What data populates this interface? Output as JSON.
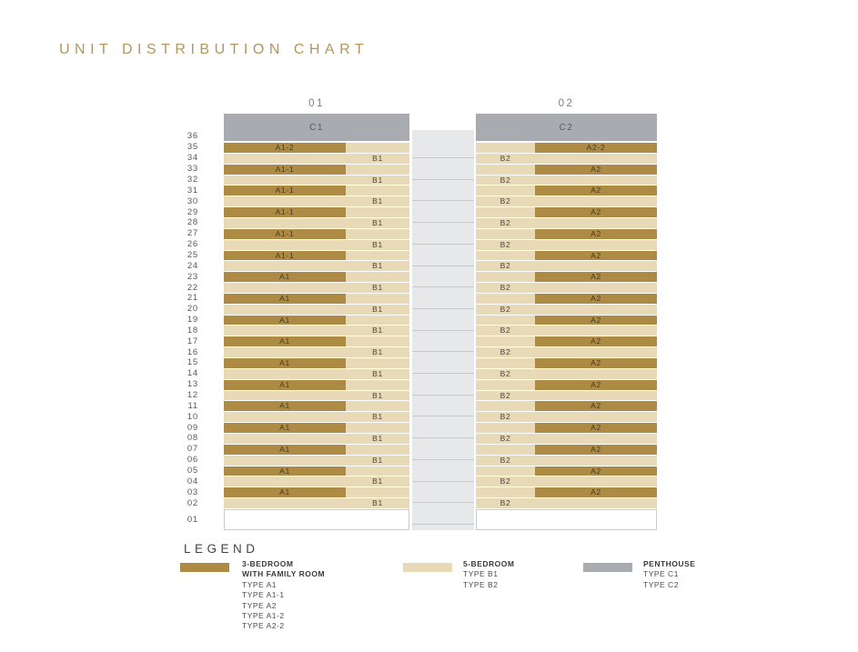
{
  "colors": {
    "gold": "#ae8b45",
    "cream": "#e9dab7",
    "penthouse_gray": "#a8abaf",
    "core_fill": "#e6e8ea",
    "core_divider": "#c7c9cc",
    "title_gold": "#b3965c"
  },
  "chart_data": {
    "type": "table",
    "title": "UNIT DISTRIBUTION CHART",
    "stacks": [
      {
        "label": "01",
        "penthouse": "C1"
      },
      {
        "label": "02",
        "penthouse": "C2"
      }
    ],
    "floors": [
      {
        "floor": "36",
        "type": "penthouse"
      },
      {
        "floor": "35",
        "left": {
          "kind": "A",
          "label": "A1-2"
        },
        "right": {
          "kind": "A",
          "label": "A2-2"
        }
      },
      {
        "floor": "34",
        "left": {
          "kind": "B",
          "label": "B1"
        },
        "right": {
          "kind": "B",
          "label": "B2"
        }
      },
      {
        "floor": "33",
        "left": {
          "kind": "A",
          "label": "A1-1"
        },
        "right": {
          "kind": "A",
          "label": "A2"
        }
      },
      {
        "floor": "32",
        "left": {
          "kind": "B",
          "label": "B1"
        },
        "right": {
          "kind": "B",
          "label": "B2"
        }
      },
      {
        "floor": "31",
        "left": {
          "kind": "A",
          "label": "A1-1"
        },
        "right": {
          "kind": "A",
          "label": "A2"
        }
      },
      {
        "floor": "30",
        "left": {
          "kind": "B",
          "label": "B1"
        },
        "right": {
          "kind": "B",
          "label": "B2"
        }
      },
      {
        "floor": "29",
        "left": {
          "kind": "A",
          "label": "A1-1"
        },
        "right": {
          "kind": "A",
          "label": "A2"
        }
      },
      {
        "floor": "28",
        "left": {
          "kind": "B",
          "label": "B1"
        },
        "right": {
          "kind": "B",
          "label": "B2"
        }
      },
      {
        "floor": "27",
        "left": {
          "kind": "A",
          "label": "A1-1"
        },
        "right": {
          "kind": "A",
          "label": "A2"
        }
      },
      {
        "floor": "26",
        "left": {
          "kind": "B",
          "label": "B1"
        },
        "right": {
          "kind": "B",
          "label": "B2"
        }
      },
      {
        "floor": "25",
        "left": {
          "kind": "A",
          "label": "A1-1"
        },
        "right": {
          "kind": "A",
          "label": "A2"
        }
      },
      {
        "floor": "24",
        "left": {
          "kind": "B",
          "label": "B1"
        },
        "right": {
          "kind": "B",
          "label": "B2"
        }
      },
      {
        "floor": "23",
        "left": {
          "kind": "A",
          "label": "A1"
        },
        "right": {
          "kind": "A",
          "label": "A2"
        }
      },
      {
        "floor": "22",
        "left": {
          "kind": "B",
          "label": "B1"
        },
        "right": {
          "kind": "B",
          "label": "B2"
        }
      },
      {
        "floor": "21",
        "left": {
          "kind": "A",
          "label": "A1"
        },
        "right": {
          "kind": "A",
          "label": "A2"
        }
      },
      {
        "floor": "20",
        "left": {
          "kind": "B",
          "label": "B1"
        },
        "right": {
          "kind": "B",
          "label": "B2"
        }
      },
      {
        "floor": "19",
        "left": {
          "kind": "A",
          "label": "A1"
        },
        "right": {
          "kind": "A",
          "label": "A2"
        }
      },
      {
        "floor": "18",
        "left": {
          "kind": "B",
          "label": "B1"
        },
        "right": {
          "kind": "B",
          "label": "B2"
        }
      },
      {
        "floor": "17",
        "left": {
          "kind": "A",
          "label": "A1"
        },
        "right": {
          "kind": "A",
          "label": "A2"
        }
      },
      {
        "floor": "16",
        "left": {
          "kind": "B",
          "label": "B1"
        },
        "right": {
          "kind": "B",
          "label": "B2"
        }
      },
      {
        "floor": "15",
        "left": {
          "kind": "A",
          "label": "A1"
        },
        "right": {
          "kind": "A",
          "label": "A2"
        }
      },
      {
        "floor": "14",
        "left": {
          "kind": "B",
          "label": "B1"
        },
        "right": {
          "kind": "B",
          "label": "B2"
        }
      },
      {
        "floor": "13",
        "left": {
          "kind": "A",
          "label": "A1"
        },
        "right": {
          "kind": "A",
          "label": "A2"
        }
      },
      {
        "floor": "12",
        "left": {
          "kind": "B",
          "label": "B1"
        },
        "right": {
          "kind": "B",
          "label": "B2"
        }
      },
      {
        "floor": "11",
        "left": {
          "kind": "A",
          "label": "A1"
        },
        "right": {
          "kind": "A",
          "label": "A2"
        }
      },
      {
        "floor": "10",
        "left": {
          "kind": "B",
          "label": "B1"
        },
        "right": {
          "kind": "B",
          "label": "B2"
        }
      },
      {
        "floor": "09",
        "left": {
          "kind": "A",
          "label": "A1"
        },
        "right": {
          "kind": "A",
          "label": "A2"
        }
      },
      {
        "floor": "08",
        "left": {
          "kind": "B",
          "label": "B1"
        },
        "right": {
          "kind": "B",
          "label": "B2"
        }
      },
      {
        "floor": "07",
        "left": {
          "kind": "A",
          "label": "A1"
        },
        "right": {
          "kind": "A",
          "label": "A2"
        }
      },
      {
        "floor": "06",
        "left": {
          "kind": "B",
          "label": "B1"
        },
        "right": {
          "kind": "B",
          "label": "B2"
        }
      },
      {
        "floor": "05",
        "left": {
          "kind": "A",
          "label": "A1"
        },
        "right": {
          "kind": "A",
          "label": "A2"
        }
      },
      {
        "floor": "04",
        "left": {
          "kind": "B",
          "label": "B1"
        },
        "right": {
          "kind": "B",
          "label": "B2"
        }
      },
      {
        "floor": "03",
        "left": {
          "kind": "A",
          "label": "A1"
        },
        "right": {
          "kind": "A",
          "label": "A2"
        }
      },
      {
        "floor": "02",
        "left": {
          "kind": "B",
          "label": "B1"
        },
        "right": {
          "kind": "B",
          "label": "B2"
        }
      },
      {
        "floor": "01",
        "type": "empty"
      }
    ]
  },
  "legend": {
    "heading": "LEGEND",
    "items": [
      {
        "swatch": "gold",
        "bold_lines": [
          "3-BEDROOM",
          "WITH FAMILY ROOM"
        ],
        "lines": [
          "TYPE A1",
          "TYPE A1-1",
          "TYPE A2",
          "TYPE A1-2",
          "TYPE A2-2"
        ]
      },
      {
        "swatch": "cream",
        "bold_lines": [
          "5-BEDROOM"
        ],
        "lines": [
          "TYPE B1",
          "TYPE B2"
        ]
      },
      {
        "swatch": "penthouse_gray",
        "bold_lines": [
          "PENTHOUSE"
        ],
        "lines": [
          "TYPE C1",
          "TYPE C2"
        ]
      }
    ]
  }
}
